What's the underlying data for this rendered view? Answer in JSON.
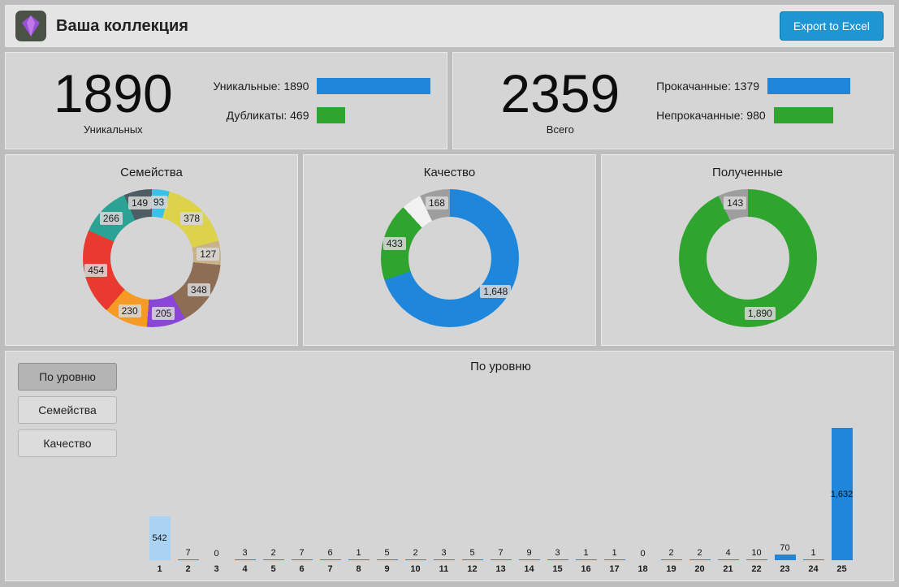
{
  "header": {
    "title": "Ваша коллекция",
    "export_label": "Export to Excel"
  },
  "stats": {
    "left": {
      "big": "1890",
      "big_label": "Уникальных",
      "rows": [
        {
          "label": "Уникальные: 1890",
          "value": 1890,
          "color": "#1e87dc"
        },
        {
          "label": "Дубликаты: 469",
          "value": 469,
          "color": "#2fa52f"
        }
      ]
    },
    "right": {
      "big": "2359",
      "big_label": "Всего",
      "rows": [
        {
          "label": "Прокачанные: 1379",
          "value": 1379,
          "color": "#1e87dc"
        },
        {
          "label": "Непрокачанные: 980",
          "value": 980,
          "color": "#2fa52f"
        }
      ]
    }
  },
  "tabs": [
    {
      "label": "По уровню",
      "active": true
    },
    {
      "label": "Семейства",
      "active": false
    },
    {
      "label": "Качество",
      "active": false
    }
  ],
  "chart_data": [
    {
      "type": "pie",
      "title": "Семейства",
      "legend_position": "none",
      "segments": [
        {
          "label": "93",
          "value": 93,
          "color": "#38c2e8"
        },
        {
          "label": "378",
          "value": 378,
          "color": "#ddd24b"
        },
        {
          "label": "127",
          "value": 127,
          "color": "#c9b189"
        },
        {
          "label": "348",
          "value": 348,
          "color": "#8d6e55"
        },
        {
          "label": "205",
          "value": 205,
          "color": "#8a46d8"
        },
        {
          "label": "230",
          "value": 230,
          "color": "#f59b23"
        },
        {
          "label": "454",
          "value": 454,
          "color": "#e83a2e"
        },
        {
          "label": "266",
          "value": 266,
          "color": "#2ba294"
        },
        {
          "label": "149",
          "value": 149,
          "color": "#4e5d63"
        }
      ]
    },
    {
      "type": "pie",
      "title": "Качество",
      "legend_position": "none",
      "segments": [
        {
          "label": "1,648",
          "value": 1648,
          "color": "#1e87dc"
        },
        {
          "label": "433",
          "value": 433,
          "color": "#2fa52f"
        },
        {
          "label": "",
          "value": 110,
          "color": "#f2f2f2"
        },
        {
          "label": "168",
          "value": 168,
          "color": "#9e9e9e"
        }
      ]
    },
    {
      "type": "pie",
      "title": "Полученные",
      "legend_position": "none",
      "segments": [
        {
          "label": "1,890",
          "value": 1890,
          "color": "#2fa52f"
        },
        {
          "label": "143",
          "value": 143,
          "color": "#9e9e9e"
        }
      ]
    },
    {
      "type": "bar",
      "title": "По уровню",
      "categories": [
        "1",
        "2",
        "3",
        "4",
        "5",
        "6",
        "7",
        "8",
        "9",
        "10",
        "11",
        "12",
        "13",
        "14",
        "15",
        "16",
        "17",
        "18",
        "19",
        "20",
        "21",
        "22",
        "23",
        "24",
        "25"
      ],
      "values": [
        542,
        7,
        0,
        3,
        2,
        7,
        6,
        1,
        5,
        2,
        3,
        5,
        7,
        9,
        3,
        1,
        1,
        0,
        2,
        2,
        4,
        10,
        70,
        1,
        1632
      ],
      "value_labels": [
        "542",
        "7",
        "0",
        "3",
        "2",
        "7",
        "6",
        "1",
        "5",
        "2",
        "3",
        "5",
        "7",
        "9",
        "3",
        "1",
        "1",
        "0",
        "2",
        "2",
        "4",
        "10",
        "70",
        "1",
        "1,632"
      ],
      "colors": {
        "default": "#1e87dc",
        "first": "#a9d2f3"
      },
      "xlabel": "",
      "ylabel": "",
      "ylim": [
        0,
        1632
      ],
      "grid": false
    }
  ]
}
